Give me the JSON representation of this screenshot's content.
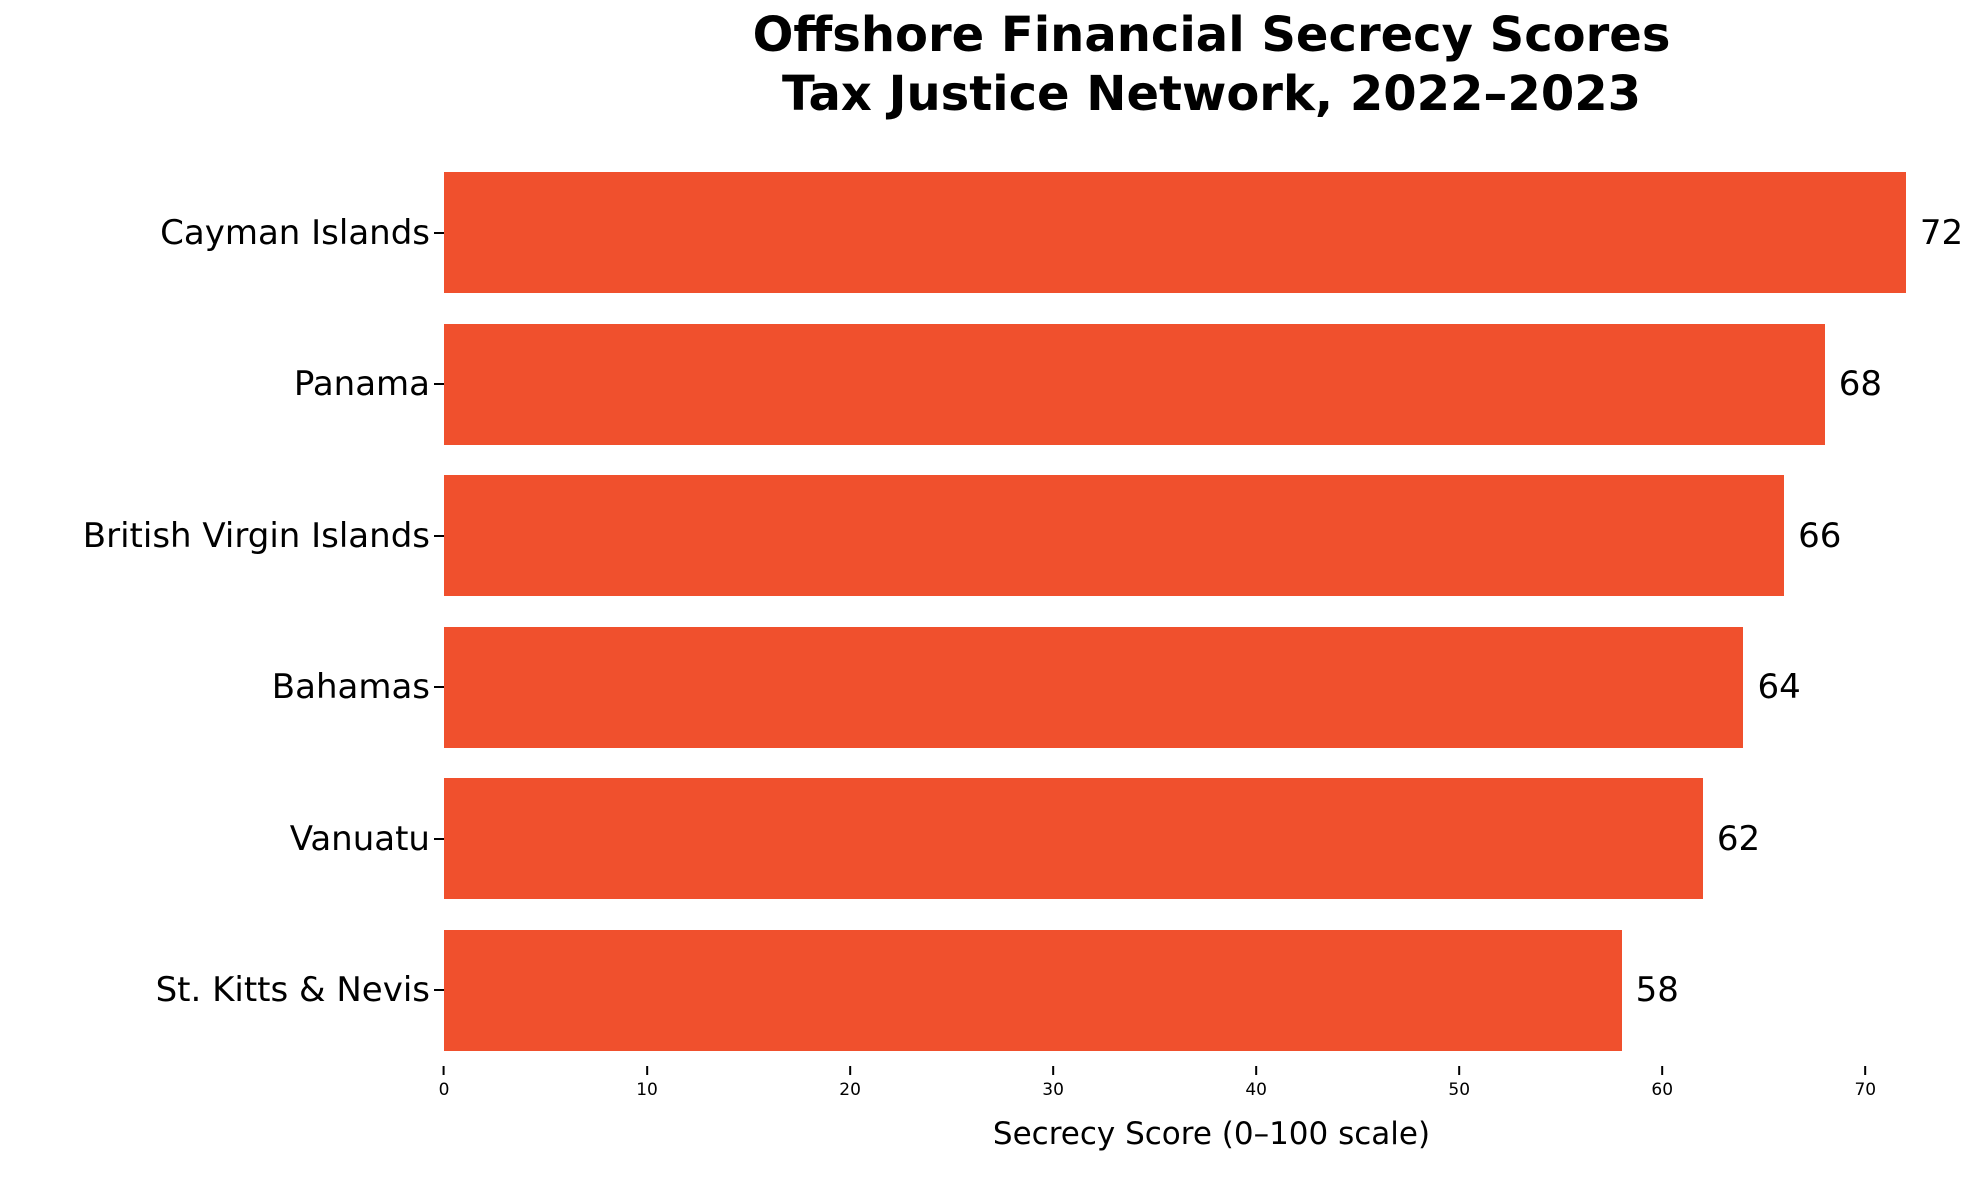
{
  "chart_data": {
    "type": "bar",
    "orientation": "horizontal",
    "title": "Offshore Financial Secrecy Scores",
    "subtitle": "Tax Justice Network, 2022–2023",
    "categories": [
      "Cayman Islands",
      "Panama",
      "British Virgin Islands",
      "Bahamas",
      "Vanuatu",
      "St. Kitts & Nevis"
    ],
    "values": [
      72,
      68,
      66,
      64,
      62,
      58
    ],
    "value_labels": [
      "72",
      "68",
      "66",
      "64",
      "62",
      "58"
    ],
    "xlabel": "Secrecy Score (0–100 scale)",
    "xticks": [
      0,
      10,
      20,
      30,
      40,
      50,
      60,
      70
    ],
    "xlim": [
      0,
      75.6
    ],
    "bar_color": "#F0502D",
    "text_color": "#000000",
    "background_color": "#FFFFFF",
    "grid": false,
    "legend": null
  }
}
